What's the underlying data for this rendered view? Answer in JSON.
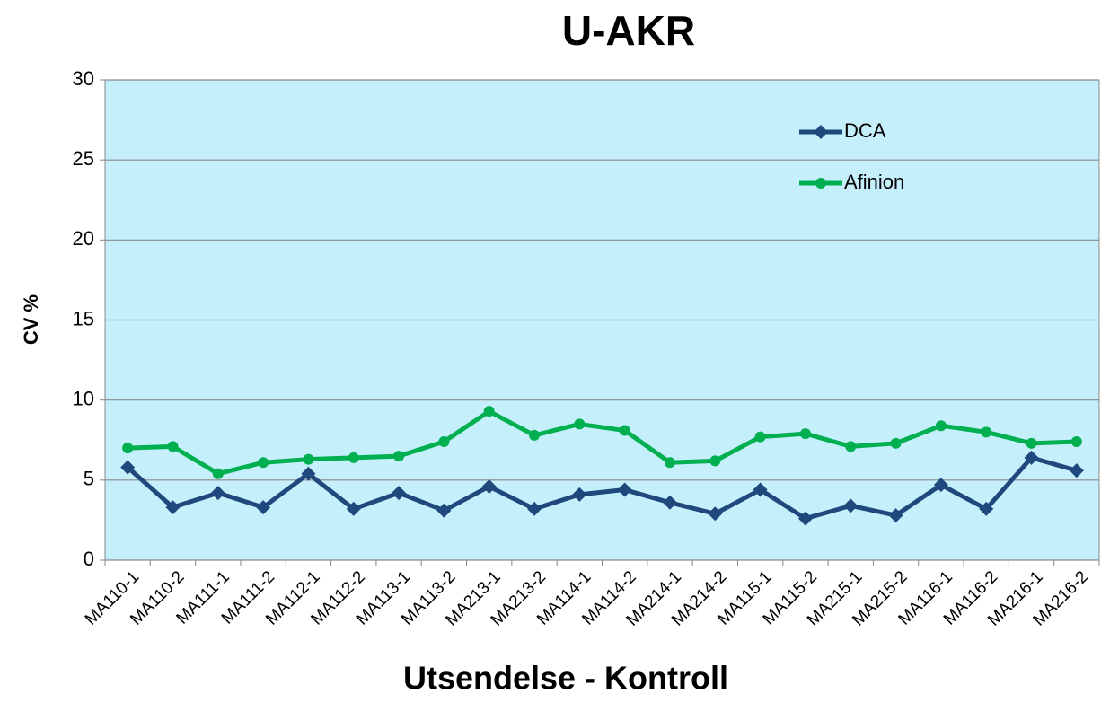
{
  "chart_data": {
    "type": "line",
    "title": "U-AKR",
    "x_label": "Utsendelse - Kontroll",
    "y_label": "CV %",
    "categories": [
      "MA110-1",
      "MA110-2",
      "MA111-1",
      "MA111-2",
      "MA112-1",
      "MA112-2",
      "MA113-1",
      "MA113-2",
      "MA213-1",
      "MA213-2",
      "MA114-1",
      "MA114-2",
      "MA214-1",
      "MA214-2",
      "MA115-1",
      "MA115-2",
      "MA215-1",
      "MA215-2",
      "MA116-1",
      "MA116-2",
      "MA216-1",
      "MA216-2"
    ],
    "series": [
      {
        "name": "DCA",
        "color": "#1f497d",
        "marker": "diamond",
        "values": [
          5.8,
          3.3,
          4.2,
          3.3,
          5.4,
          3.2,
          4.2,
          3.1,
          4.6,
          3.2,
          4.1,
          4.4,
          3.6,
          2.9,
          4.4,
          2.6,
          3.4,
          2.8,
          4.7,
          3.2,
          6.4,
          5.6
        ]
      },
      {
        "name": "Afinion",
        "color": "#00b050",
        "marker": "circle",
        "values": [
          7.0,
          7.1,
          5.4,
          6.1,
          6.3,
          6.4,
          6.5,
          7.4,
          9.3,
          7.8,
          8.5,
          8.1,
          6.1,
          6.2,
          7.7,
          7.9,
          7.1,
          7.3,
          8.4,
          8.0,
          7.3,
          7.4
        ]
      }
    ],
    "ylim": [
      0,
      30
    ],
    "yticks": [
      0,
      5,
      10,
      15,
      20,
      25,
      30
    ],
    "grid": true,
    "legend": "upper right",
    "plot_background": "#c6effc"
  }
}
